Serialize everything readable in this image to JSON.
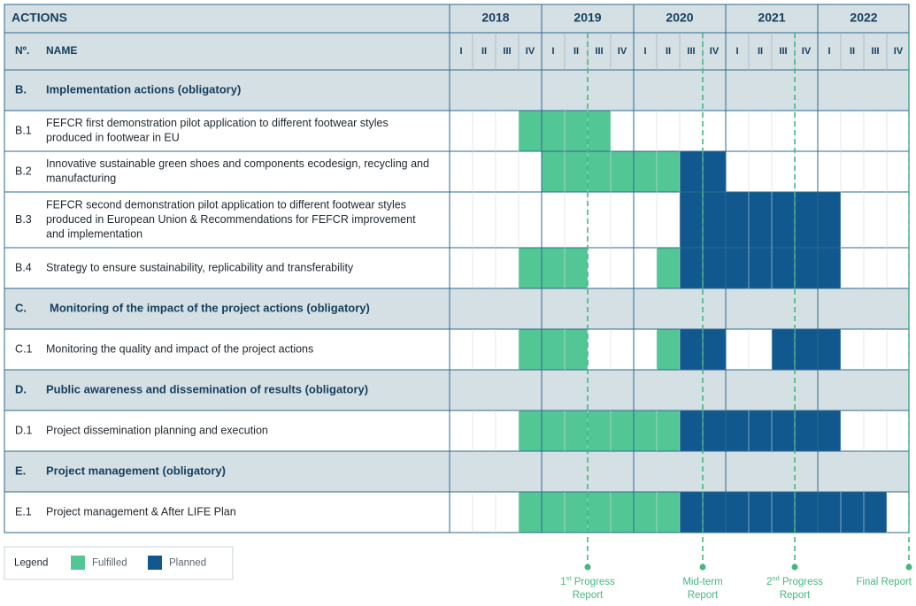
{
  "chart_data": {
    "type": "gantt",
    "header": {
      "actions_label": "ACTIONS",
      "number_label": "Nº.",
      "name_label": "NAME"
    },
    "years": [
      "2018",
      "2019",
      "2020",
      "2021",
      "2022"
    ],
    "quarters": [
      "I",
      "II",
      "III",
      "IV"
    ],
    "rows": [
      {
        "kind": "section",
        "code": "B.",
        "name_lines": [
          "Implementation actions (obligatory)"
        ]
      },
      {
        "kind": "task",
        "code": "B.1",
        "name_lines": [
          "FEFCR first demonstration pilot application to different footwear styles",
          "produced in footwear in EU"
        ],
        "fulfilled": [
          [
            3,
            7
          ]
        ],
        "planned": []
      },
      {
        "kind": "task",
        "code": "B.2",
        "name_lines": [
          "Innovative sustainable  green shoes and components ecodesign, recycling and",
          "manufacturing"
        ],
        "fulfilled": [
          [
            4,
            10
          ]
        ],
        "planned": [
          [
            10,
            12
          ]
        ]
      },
      {
        "kind": "task",
        "code": "B.3",
        "name_lines": [
          "FEFCR second demonstration pilot application to different footwear styles",
          "produced in European Union & Recommendations for FEFCR improvement",
          "and implementation"
        ],
        "fulfilled": [],
        "planned": [
          [
            10,
            17
          ]
        ]
      },
      {
        "kind": "task",
        "code": "B.4",
        "name_lines": [
          "Strategy to ensure sustainability, replicability and transferability"
        ],
        "fulfilled": [
          [
            3,
            6
          ],
          [
            9,
            10
          ]
        ],
        "planned": [
          [
            10,
            17
          ]
        ]
      },
      {
        "kind": "section",
        "code": "C.",
        "name_lines": [
          "Monitoring of the impact of the project actions (obligatory)"
        ]
      },
      {
        "kind": "task",
        "code": "C.1",
        "name_lines": [
          "Monitoring the quality and impact of the project actions"
        ],
        "fulfilled": [
          [
            3,
            6
          ],
          [
            9,
            10
          ]
        ],
        "planned": [
          [
            10,
            12
          ],
          [
            14,
            17
          ]
        ]
      },
      {
        "kind": "section",
        "code": "D.",
        "name_lines": [
          "Public awareness and dissemination of results (obligatory)"
        ]
      },
      {
        "kind": "task",
        "code": "D.1",
        "name_lines": [
          "Project dissemination planning and execution"
        ],
        "fulfilled": [
          [
            3,
            10
          ]
        ],
        "planned": [
          [
            10,
            17
          ]
        ]
      },
      {
        "kind": "section",
        "code": "E.",
        "name_lines": [
          "Project management (obligatory)"
        ]
      },
      {
        "kind": "task",
        "code": "E.1",
        "name_lines": [
          "Project management & After LIFE Plan"
        ],
        "fulfilled": [
          [
            3,
            10
          ]
        ],
        "planned": [
          [
            10,
            19
          ]
        ]
      }
    ],
    "legend": {
      "title": "Legend",
      "items": [
        {
          "label": "Fulfilled",
          "color": "#52c795"
        },
        {
          "label": "Planned",
          "color": "#11588e"
        }
      ]
    },
    "milestones": [
      {
        "quarter_pos": 6,
        "label_lines": [
          "1st Progress",
          "Report"
        ],
        "superscript": "st"
      },
      {
        "quarter_pos": 11,
        "label_lines": [
          "Mid-term",
          "Report"
        ],
        "superscript": ""
      },
      {
        "quarter_pos": 15,
        "label_lines": [
          "2nd Progress",
          "Report"
        ],
        "superscript": "nd"
      },
      {
        "quarter_pos": 20,
        "label_lines": [
          "Final Report"
        ],
        "superscript": ""
      }
    ],
    "colors": {
      "header_bg": "#d5e0e5",
      "header_text": "#153e5c",
      "grid_line": "#2d6a8e",
      "fulfilled": "#52c795",
      "planned": "#11588e",
      "milestone": "#45b87f",
      "body_text": "#222a30"
    }
  }
}
